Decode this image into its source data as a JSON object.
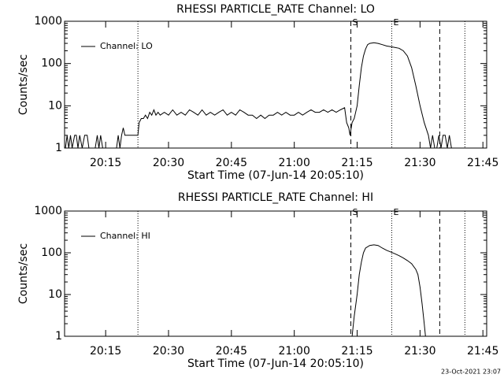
{
  "chart_data": [
    {
      "type": "line",
      "title": "RHESSI PARTICLE_RATE Channel: LO",
      "xlabel": "Start Time (07-Jun-14 20:05:10)",
      "ylabel": "Counts/sec",
      "x": [
        5.4,
        5.8,
        6.2,
        6.6,
        7.0,
        7.6,
        8.0,
        8.4,
        8.8,
        9.4,
        10.0,
        10.6,
        11.0,
        12.5,
        13.0,
        13.4,
        13.8,
        14.3,
        17.6,
        18.0,
        18.4,
        18.8,
        19.2,
        19.6,
        22.7,
        23.0,
        23.5,
        24.0,
        24.5,
        25,
        25.5,
        26,
        26.5,
        27,
        27.5,
        28,
        29,
        30,
        31,
        32,
        33,
        34,
        35,
        36,
        37,
        38,
        39,
        40,
        41,
        42,
        43,
        44,
        45,
        46,
        47,
        48,
        49,
        50,
        51,
        52,
        53,
        54,
        55,
        56,
        57,
        58,
        59,
        60,
        61,
        62,
        63,
        64,
        65,
        66,
        67,
        68,
        69,
        70,
        71,
        72,
        72.5,
        73,
        73.3,
        73.8,
        74.3,
        75,
        75.5,
        76,
        76.5,
        77,
        77.5,
        78,
        79,
        80,
        81,
        82,
        83,
        84,
        85,
        86,
        87,
        88,
        89,
        90,
        91,
        92,
        92.5,
        93,
        93.5,
        94,
        94.5,
        95,
        95.5,
        96,
        96.5,
        97,
        97.5,
        98.5
      ],
      "series": [
        {
          "name": "Channel: LO",
          "color": "#000000",
          "values": [
            1,
            2,
            1,
            2,
            1,
            2,
            2,
            1,
            2,
            1,
            2,
            2,
            1,
            1,
            2,
            1,
            2,
            1,
            1,
            2,
            1,
            2,
            3,
            2,
            2,
            4,
            5,
            5,
            6,
            5,
            7,
            6,
            8,
            6,
            7,
            6,
            7,
            6,
            8,
            6,
            7,
            6,
            8,
            7,
            6,
            8,
            6,
            7,
            6,
            7,
            8,
            6,
            7,
            6,
            8,
            7,
            6,
            6,
            5,
            6,
            5,
            6,
            6,
            7,
            6,
            7,
            6,
            6,
            7,
            6,
            7,
            8,
            7,
            7,
            8,
            7,
            8,
            7,
            8,
            9,
            4,
            3,
            2,
            4,
            5,
            10,
            30,
            80,
            150,
            220,
            280,
            300,
            310,
            300,
            280,
            260,
            250,
            240,
            230,
            200,
            150,
            80,
            30,
            10,
            4,
            2,
            1,
            2,
            1,
            1,
            2,
            1,
            2,
            2,
            1,
            2,
            1,
            1
          ]
        }
      ],
      "xlim": [
        5.2,
        105.9
      ],
      "xticks": [
        {
          "value": 15,
          "label": "20:15"
        },
        {
          "value": 30,
          "label": "20:30"
        },
        {
          "value": 45,
          "label": "20:45"
        },
        {
          "value": 60,
          "label": "21:00"
        },
        {
          "value": 75,
          "label": "21:15"
        },
        {
          "value": 90,
          "label": "21:30"
        },
        {
          "value": 105,
          "label": "21:45"
        }
      ],
      "ylim": [
        1,
        1000
      ],
      "yticks": [
        1,
        10,
        100,
        1000
      ],
      "log_y": true,
      "legend": "upper left",
      "markers": [
        {
          "x": 22.7,
          "style": "dotted"
        },
        {
          "x": 73.5,
          "style": "dashed"
        },
        {
          "x": 83.25,
          "style": "dotted"
        },
        {
          "x": 94.7,
          "style": "dashed"
        },
        {
          "x": 100.7,
          "style": "dotted"
        }
      ],
      "annotations": [
        {
          "text": "S",
          "x": 73.5
        },
        {
          "text": "E",
          "x": 83.25
        }
      ]
    },
    {
      "type": "line",
      "title": "RHESSI PARTICLE_RATE Channel: HI",
      "xlabel": "Start Time (07-Jun-14 20:05:10)",
      "ylabel": "Counts/sec",
      "x": [
        73.8,
        74.3,
        75,
        75.5,
        76,
        76.5,
        77,
        78,
        79,
        80,
        81,
        82,
        83,
        84,
        85,
        86,
        87,
        88,
        89,
        89.5,
        90,
        90.5,
        91,
        91.3
      ],
      "series": [
        {
          "name": "Channel: HI",
          "color": "#000000",
          "values": [
            1,
            3,
            10,
            30,
            60,
            100,
            130,
            150,
            155,
            150,
            130,
            115,
            105,
            95,
            85,
            75,
            65,
            55,
            40,
            30,
            15,
            6,
            2,
            1
          ]
        }
      ],
      "xlim": [
        5.2,
        105.9
      ],
      "xticks": [
        {
          "value": 15,
          "label": "20:15"
        },
        {
          "value": 30,
          "label": "20:30"
        },
        {
          "value": 45,
          "label": "20:45"
        },
        {
          "value": 60,
          "label": "21:00"
        },
        {
          "value": 75,
          "label": "21:15"
        },
        {
          "value": 90,
          "label": "21:30"
        },
        {
          "value": 105,
          "label": "21:45"
        }
      ],
      "ylim": [
        1,
        1000
      ],
      "yticks": [
        1,
        10,
        100,
        1000
      ],
      "log_y": true,
      "legend": "upper left",
      "markers": [
        {
          "x": 22.7,
          "style": "dotted"
        },
        {
          "x": 73.5,
          "style": "dashed"
        },
        {
          "x": 83.25,
          "style": "dotted"
        },
        {
          "x": 94.7,
          "style": "dashed"
        },
        {
          "x": 100.7,
          "style": "dotted"
        }
      ],
      "annotations": [
        {
          "text": "S",
          "x": 73.5
        },
        {
          "text": "E",
          "x": 83.25
        }
      ]
    }
  ],
  "footer": "23-Oct-2021 23:07"
}
